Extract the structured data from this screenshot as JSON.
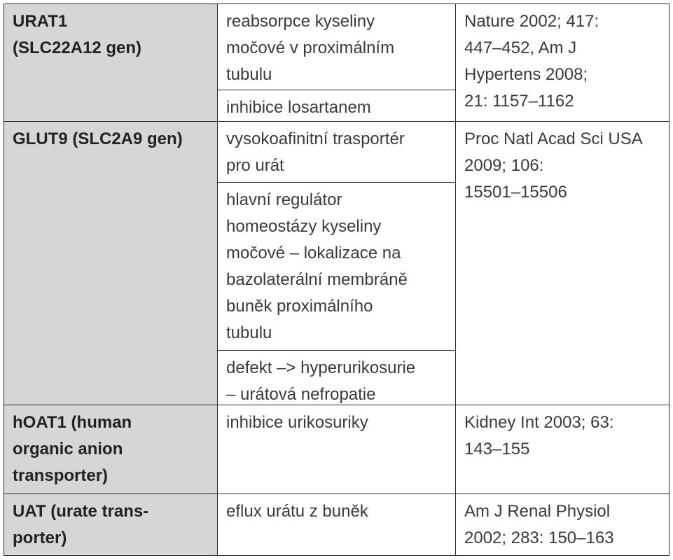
{
  "table": {
    "rows": [
      {
        "gene": [
          "URAT1",
          "(SLC22A12 gen)"
        ],
        "functions": [
          [
            "reabsorpce kyseliny",
            "močové v proximálním",
            "tubulu"
          ],
          [
            "inhibice losartanem"
          ]
        ],
        "reference": [
          "Nature 2002; 417:",
          "447–452, Am J",
          "Hypertens 2008;",
          "21: 1157–1162"
        ]
      },
      {
        "gene": [
          "GLUT9 (SLC2A9 gen)"
        ],
        "functions": [
          [
            "vysokoafinitní trasportér",
            "pro urát"
          ],
          [
            "hlavní regulátor",
            "homeostázy kyseliny",
            "močové – lokalizace na",
            "bazolaterální membráně",
            "buněk proximálního",
            "tubulu"
          ],
          [
            "defekt –> hyperurikosurie",
            "– urátová nefropatie"
          ]
        ],
        "reference": [
          "Proc Natl Acad Sci USA",
          "2009; 106:",
          "15501–15506"
        ]
      },
      {
        "gene": [
          "hOAT1 (human",
          "organic anion",
          "transporter)"
        ],
        "functions": [
          [
            "inhibice urikosuriky"
          ]
        ],
        "reference": [
          "Kidney Int 2003; 63:",
          "143–155"
        ]
      },
      {
        "gene": [
          "UAT (urate trans-",
          "porter)"
        ],
        "functions": [
          [
            "eflux urátu z buněk"
          ]
        ],
        "reference": [
          "Am J Renal Physiol",
          "2002; 283: 150–163"
        ]
      }
    ]
  }
}
